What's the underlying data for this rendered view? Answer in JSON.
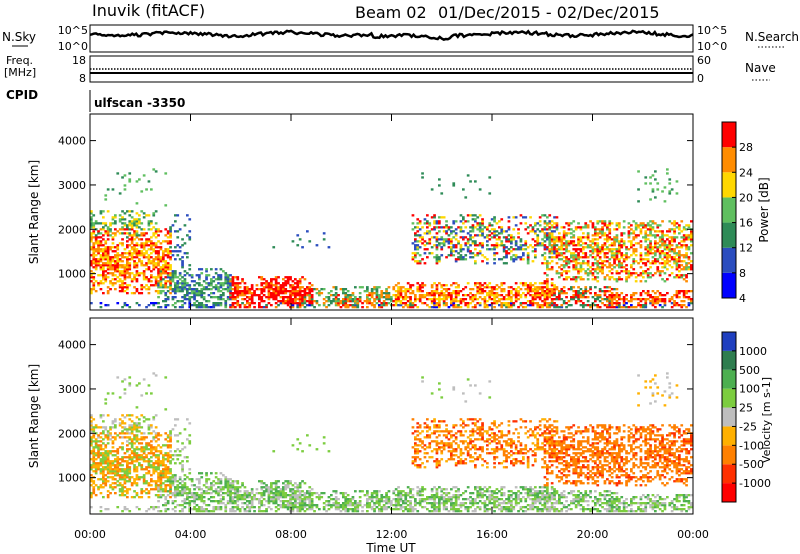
{
  "header": {
    "station": "Inuvik (fitACF)",
    "beam": "Beam 02",
    "date_range": "01/Dec/2015 - 02/Dec/2015"
  },
  "top_panels": {
    "nsky_label": "N.Sky",
    "nsky_ticks": [
      "10^5",
      "10^0"
    ],
    "nsearch_label": "N.Search",
    "nsearch_ticks": [
      "10^5",
      "10^0"
    ],
    "freq_label": "Freq.",
    "freq_unit": "[MHz]",
    "freq_ticks": [
      "18",
      "8"
    ],
    "nave_label": "Nave",
    "nave_ticks": [
      "60",
      "0"
    ],
    "cpid_label": "CPID",
    "cpid_value": "ulfscan -3350"
  },
  "chart_data": [
    {
      "type": "heatmap",
      "parameter": "Power",
      "ylabel": "Slant Range [km]",
      "yticks": [
        "4000",
        "3000",
        "2000",
        "1000"
      ],
      "ylim": [
        180,
        4600
      ],
      "colorbar_label": "Power [dB]",
      "colorbar_ticks": [
        "28",
        "24",
        "20",
        "16",
        "12",
        "8",
        "4"
      ],
      "colors": [
        "#0000ff",
        "#2b4dbf",
        "#2e8b57",
        "#5fbf5f",
        "#ffd700",
        "#ff8c00",
        "#ff0000"
      ]
    },
    {
      "type": "heatmap",
      "parameter": "Velocity",
      "ylabel": "Slant Range [km]",
      "yticks": [
        "4000",
        "3000",
        "2000",
        "1000"
      ],
      "ylim": [
        180,
        4600
      ],
      "xlabel": "Time UT",
      "xticks": [
        "00:00",
        "04:00",
        "08:00",
        "12:00",
        "16:00",
        "20:00",
        "00:00"
      ],
      "colorbar_label": "Velocity [m s-1]",
      "colorbar_ticks": [
        "1000",
        "500",
        "100",
        "25",
        "-25",
        "-100",
        "-500",
        "-1000"
      ],
      "colors": [
        "#1f3fbf",
        "#2e7d4f",
        "#4caf50",
        "#7ccd3f",
        "#bebebe",
        "#ffb000",
        "#ff8000",
        "#ff3000",
        "#ff0000"
      ]
    }
  ]
}
